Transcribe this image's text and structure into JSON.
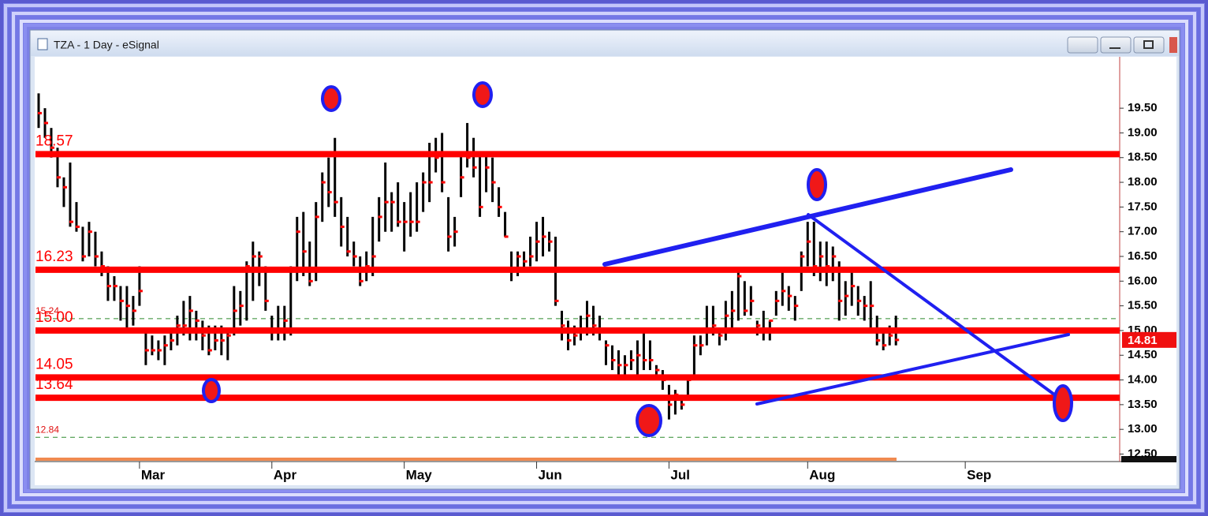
{
  "chart_data": {
    "type": "ohlc",
    "title": "TZA - 1 Day - eSignal",
    "categories": [
      null,
      null,
      null,
      null,
      null,
      null,
      null,
      null,
      null,
      null,
      null,
      null,
      null,
      null,
      null,
      null,
      "Mar",
      null,
      null,
      null,
      null,
      null,
      null,
      null,
      null,
      null,
      null,
      null,
      null,
      null,
      null,
      null,
      null,
      null,
      null,
      null,
      null,
      "Apr",
      null,
      null,
      null,
      null,
      null,
      null,
      null,
      null,
      null,
      null,
      null,
      null,
      null,
      null,
      null,
      null,
      null,
      null,
      null,
      null,
      "May",
      null,
      null,
      null,
      null,
      null,
      null,
      null,
      null,
      null,
      null,
      null,
      null,
      null,
      null,
      null,
      null,
      null,
      null,
      null,
      null,
      "Jun",
      null,
      null,
      null,
      null,
      null,
      null,
      null,
      null,
      null,
      null,
      null,
      null,
      null,
      null,
      null,
      null,
      null,
      null,
      null,
      null,
      "Jul",
      null,
      null,
      null,
      null,
      null,
      null,
      null,
      null,
      null,
      null,
      null,
      null,
      null,
      null,
      null,
      null,
      null,
      null,
      null,
      null,
      null,
      "Aug",
      null,
      null,
      null,
      null,
      null,
      null,
      null,
      null,
      null,
      null,
      null,
      null,
      null,
      null,
      null,
      null,
      null,
      null,
      null,
      null,
      null,
      null,
      null,
      null,
      "Sep",
      null,
      null,
      null,
      null,
      null,
      null,
      null,
      null,
      null,
      null,
      null,
      null,
      null,
      null,
      null,
      null,
      null,
      null,
      null,
      null,
      null,
      null,
      null,
      null
    ],
    "high": [
      19.8,
      19.5,
      19.1,
      18.7,
      18.1,
      18.4,
      17.6,
      17.1,
      17.2,
      17.0,
      16.6,
      16.3,
      16.1,
      15.9,
      15.9,
      15.7,
      16.3,
      15.0,
      14.9,
      14.8,
      14.9,
      15.0,
      15.3,
      15.6,
      15.7,
      15.4,
      15.2,
      15.1,
      15.1,
      15.1,
      15.0,
      15.9,
      15.8,
      16.4,
      16.8,
      16.6,
      16.3,
      15.3,
      15.5,
      15.5,
      16.3,
      17.3,
      17.4,
      16.8,
      17.6,
      18.2,
      18.5,
      18.9,
      17.7,
      17.3,
      16.8,
      16.5,
      16.6,
      17.3,
      17.7,
      18.4,
      17.8,
      18.0,
      17.6,
      17.8,
      18.0,
      18.2,
      18.8,
      18.9,
      19.0,
      17.7,
      17.3,
      18.6,
      19.2,
      18.9,
      18.6,
      18.6,
      18.5,
      17.9,
      17.4,
      16.6,
      16.6,
      16.6,
      16.9,
      17.2,
      17.3,
      17.0,
      16.9,
      15.4,
      15.2,
      15.1,
      15.3,
      15.6,
      15.5,
      15.3,
      14.8,
      14.7,
      14.6,
      14.5,
      14.6,
      14.8,
      15.0,
      14.8,
      14.3,
      14.2,
      13.9,
      13.8,
      13.7,
      14.1,
      14.9,
      14.9,
      15.5,
      15.5,
      15.0,
      15.6,
      15.8,
      16.2,
      16.0,
      15.9,
      15.2,
      15.4,
      15.2,
      15.8,
      16.2,
      15.9,
      15.7,
      16.6,
      17.2,
      17.2,
      16.8,
      16.8,
      16.7,
      16.4,
      16.0,
      16.2,
      15.9,
      15.7,
      16.0,
      15.3,
      15.0,
      15.1,
      15.3,
      null,
      null,
      null,
      null,
      null,
      null,
      null,
      null,
      null,
      null,
      null,
      null,
      null,
      null,
      null,
      null,
      null,
      null,
      null,
      null,
      null,
      null,
      null,
      null,
      null,
      null,
      null,
      null,
      null,
      null,
      null,
      null,
      null,
      null,
      null
    ],
    "low": [
      19.1,
      18.9,
      18.5,
      17.9,
      17.5,
      17.1,
      17.0,
      16.4,
      16.5,
      16.3,
      16.1,
      15.6,
      15.6,
      15.2,
      15.0,
      15.1,
      15.5,
      14.3,
      14.5,
      14.4,
      14.3,
      14.6,
      14.7,
      14.9,
      14.8,
      14.8,
      14.6,
      14.5,
      14.6,
      14.5,
      14.4,
      14.9,
      15.1,
      15.2,
      15.6,
      15.9,
      15.4,
      14.8,
      14.8,
      14.8,
      14.9,
      16.0,
      16.1,
      15.9,
      16.0,
      17.2,
      17.5,
      17.3,
      16.7,
      16.5,
      16.3,
      15.9,
      16.0,
      16.1,
      16.8,
      17.0,
      17.0,
      17.1,
      16.6,
      16.9,
      17.0,
      17.4,
      17.6,
      18.2,
      17.8,
      16.6,
      16.7,
      17.7,
      18.3,
      18.1,
      17.3,
      17.8,
      17.6,
      17.3,
      16.9,
      16.0,
      16.1,
      16.2,
      16.3,
      16.4,
      16.5,
      16.6,
      15.5,
      14.8,
      14.6,
      14.7,
      14.8,
      14.9,
      14.9,
      14.8,
      14.3,
      14.2,
      14.1,
      14.1,
      14.2,
      14.0,
      14.2,
      14.2,
      14.0,
      13.8,
      13.2,
      13.3,
      13.4,
      13.6,
      14.1,
      14.5,
      14.7,
      14.9,
      14.7,
      14.8,
      15.0,
      15.2,
      15.3,
      15.3,
      14.9,
      14.8,
      14.8,
      15.3,
      15.5,
      15.4,
      15.2,
      15.8,
      16.3,
      16.1,
      16.0,
      15.9,
      16.0,
      15.2,
      15.3,
      15.5,
      15.3,
      15.2,
      15.0,
      14.7,
      14.6,
      14.7,
      14.7,
      null,
      null,
      null,
      null,
      null,
      null,
      null,
      null,
      null,
      null,
      null,
      null,
      null,
      null,
      null,
      null,
      null,
      null,
      null,
      null,
      null,
      null,
      null,
      null,
      null,
      null,
      null,
      null,
      null,
      null,
      null,
      null,
      null,
      null,
      null
    ],
    "close": [
      19.4,
      19.2,
      18.7,
      18.1,
      17.9,
      17.2,
      17.1,
      16.5,
      17.0,
      16.5,
      16.3,
      15.9,
      15.9,
      15.6,
      15.5,
      15.4,
      15.8,
      14.6,
      14.6,
      14.6,
      14.7,
      14.8,
      15.1,
      15.1,
      15.4,
      15.2,
      14.9,
      14.6,
      14.8,
      14.8,
      14.9,
      15.4,
      15.5,
      16.3,
      16.5,
      16.5,
      15.6,
      15.0,
      15.0,
      15.2,
      16.2,
      17.0,
      16.6,
      16.0,
      17.3,
      18.0,
      17.8,
      17.6,
      17.1,
      16.6,
      16.5,
      16.0,
      16.3,
      16.5,
      17.3,
      17.6,
      17.6,
      17.2,
      17.2,
      17.2,
      17.2,
      18.0,
      18.0,
      18.5,
      18.0,
      16.9,
      17.0,
      18.1,
      18.5,
      18.3,
      17.5,
      18.3,
      18.0,
      17.5,
      16.9,
      16.2,
      16.5,
      16.4,
      16.5,
      16.8,
      16.9,
      16.8,
      15.6,
      15.1,
      14.8,
      14.9,
      15.0,
      15.3,
      15.1,
      15.0,
      14.7,
      14.4,
      14.3,
      14.3,
      14.4,
      14.5,
      14.4,
      14.4,
      14.2,
      14.0,
      13.5,
      13.7,
      13.5,
      14.0,
      14.7,
      14.7,
      15.0,
      15.1,
      14.9,
      15.3,
      15.4,
      16.1,
      15.4,
      15.6,
      15.1,
      15.0,
      15.2,
      15.6,
      15.8,
      15.7,
      15.5,
      16.5,
      16.8,
      16.3,
      16.5,
      16.3,
      16.5,
      15.6,
      15.7,
      15.9,
      15.6,
      15.5,
      15.5,
      14.8,
      14.7,
      14.9,
      14.81,
      null,
      null,
      null,
      null,
      null,
      null,
      null,
      null,
      null,
      null,
      null,
      null,
      null,
      null,
      null,
      null,
      null,
      null,
      null,
      null,
      null,
      null,
      null,
      null,
      null,
      null,
      null,
      null,
      null,
      null,
      null,
      null,
      null,
      null,
      null
    ],
    "bar_color": "#000000",
    "close_color": "#ff0000",
    "levels": [
      {
        "value": 18.57,
        "label": "18.57"
      },
      {
        "value": 16.23,
        "label": "16.23"
      },
      {
        "value": 15.0,
        "label": "15.00"
      },
      {
        "value": 14.05,
        "label": "14.05"
      },
      {
        "value": 13.64,
        "label": "13.64"
      }
    ],
    "level_color": "#ff0000",
    "guides": [
      {
        "value": 15.24,
        "label": "15.24"
      },
      {
        "value": 12.84,
        "label": "12.84"
      }
    ],
    "guide_color": "#2e8b2e",
    "last_price": 14.81,
    "ylim": [
      12.46,
      20.54
    ],
    "yticks": [
      {
        "value": 12.5,
        "label": "12.50"
      },
      {
        "value": 13,
        "label": "13.00"
      },
      {
        "value": 13.5,
        "label": "13.50"
      },
      {
        "value": 14,
        "label": "14.00"
      },
      {
        "value": 14.5,
        "label": "14.50"
      },
      {
        "value": 15,
        "label": "15.00"
      },
      {
        "value": 15.5,
        "label": "15.50"
      },
      {
        "value": 16,
        "label": "16.00"
      },
      {
        "value": 16.5,
        "label": "16.50"
      },
      {
        "value": 17,
        "label": "17.00"
      },
      {
        "value": 17.5,
        "label": "17.50"
      },
      {
        "value": 18,
        "label": "18.00"
      },
      {
        "value": 18.5,
        "label": "18.50"
      },
      {
        "value": 19,
        "label": "19.00"
      },
      {
        "value": 19.5,
        "label": "19.50"
      }
    ]
  }
}
